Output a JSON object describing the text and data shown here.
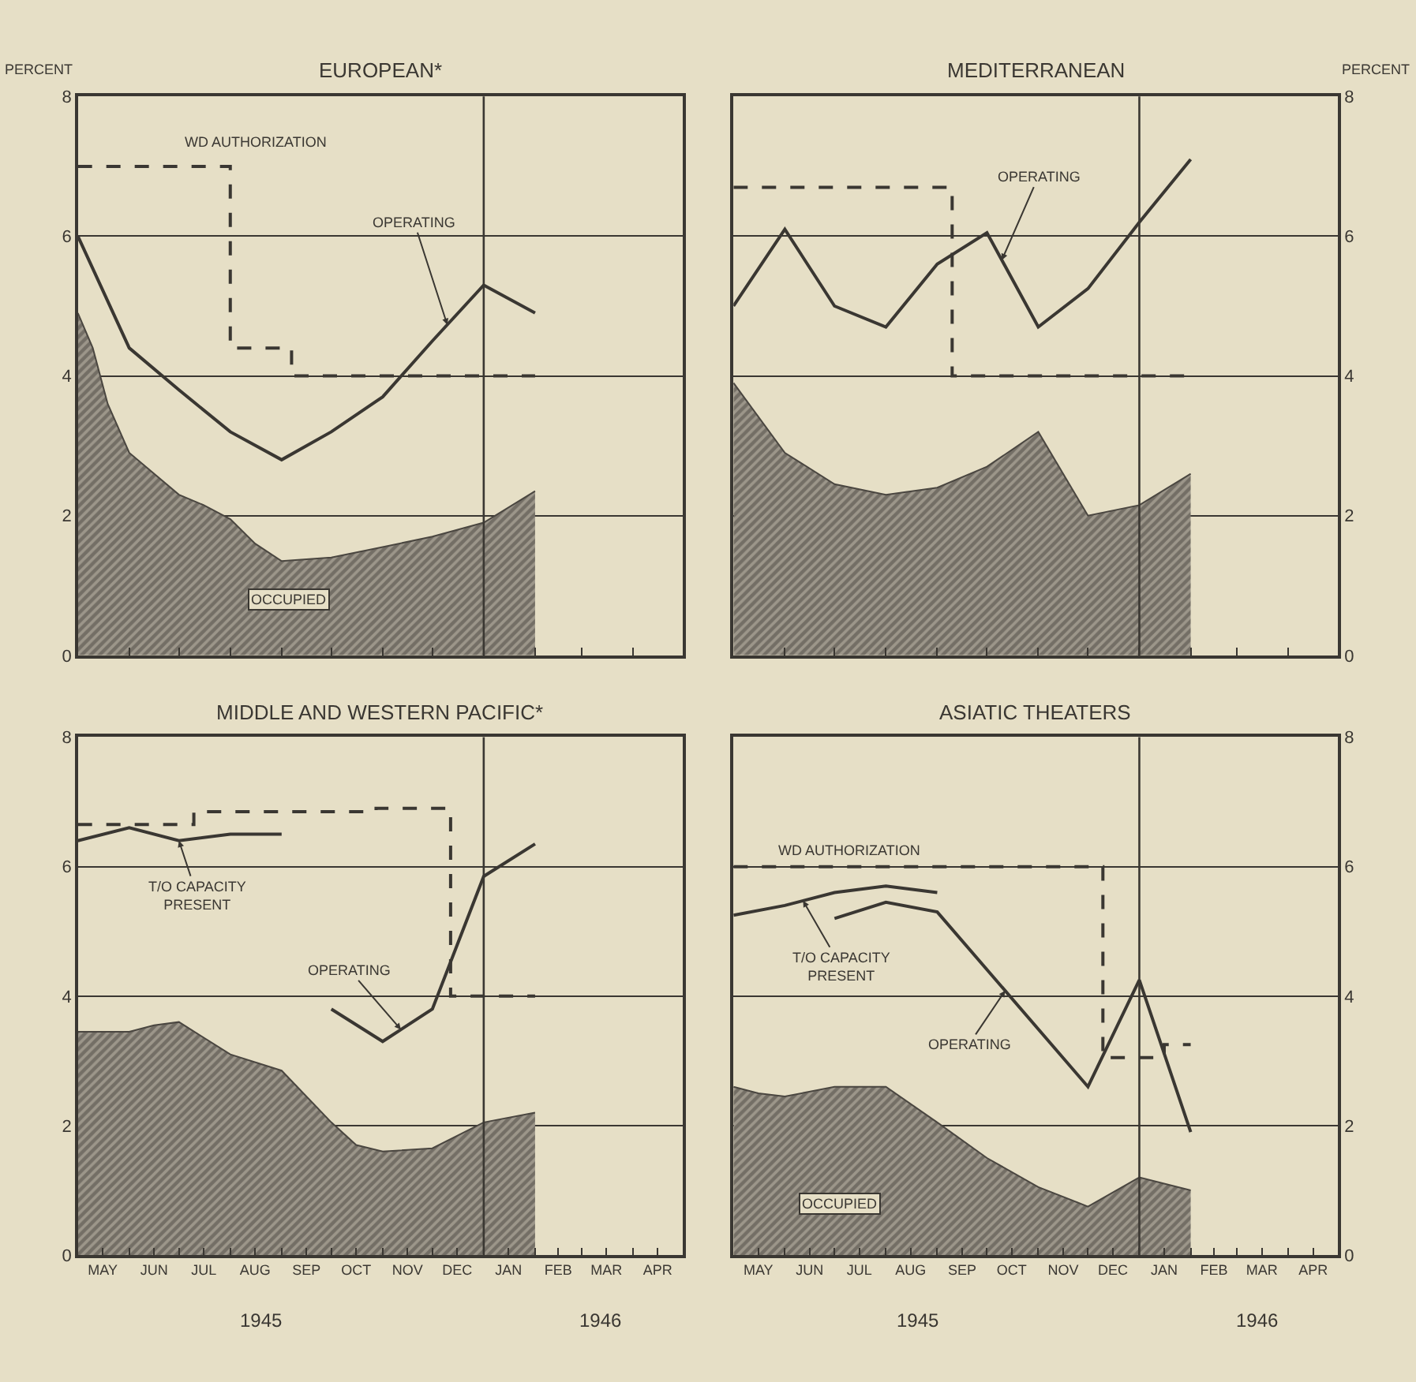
{
  "chart_data": [
    {
      "type": "line",
      "title": "EUROPEAN*",
      "ylabel": "PERCENT",
      "xlim": [
        "1945-05",
        "1946-05"
      ],
      "ylim": [
        0,
        8
      ],
      "yticks": [
        0,
        2,
        4,
        6,
        8
      ],
      "xticks": [
        {
          "value": "1945-06",
          "label": null
        },
        {
          "value": "1945-07",
          "label": null
        },
        {
          "value": "1945-08",
          "label": null
        },
        {
          "value": "1945-09",
          "label": null
        },
        {
          "value": "1945-10",
          "label": null
        },
        {
          "value": "1945-11",
          "label": null
        },
        {
          "value": "1945-12",
          "label": null
        },
        {
          "value": "1946-01",
          "label": null
        },
        {
          "value": "1946-02",
          "label": null
        },
        {
          "value": "1946-03",
          "label": null
        },
        {
          "value": "1946-04",
          "label": null
        }
      ],
      "tick_labels": "y",
      "grid": "y",
      "legend": false,
      "ref_lines": [
        {
          "axis": "x",
          "value": "1946-01"
        }
      ],
      "series": [
        {
          "name": "OCCUPIED",
          "type": "area",
          "color": "#4a4640",
          "x": [
            "1945-05",
            "1945-05-10",
            "1945-05-19",
            "1945-06",
            "1945-06-16",
            "1945-07",
            "1945-07-16",
            "1945-08",
            "1945-08-16",
            "1945-09",
            "1945-10",
            "1945-11",
            "1945-12",
            "1946-01",
            "1946-02"
          ],
          "values": [
            4.9,
            4.4,
            3.6,
            2.9,
            2.6,
            2.3,
            2.15,
            1.95,
            1.6,
            1.35,
            1.4,
            1.55,
            1.7,
            1.9,
            2.35
          ]
        },
        {
          "name": "WD AUTHORIZATION",
          "type": "step",
          "line_style": "dashed",
          "color": "#3a3732",
          "x": [
            "1945-05",
            "1945-08",
            "1945-09-07",
            "1946-02"
          ],
          "values": [
            7,
            4.4,
            4,
            4
          ]
        },
        {
          "name": "OPERATING",
          "type": "line",
          "color": "#3a3732",
          "x": [
            "1945-05",
            "1945-06",
            "1945-07",
            "1945-08",
            "1945-09",
            "1945-10",
            "1945-11",
            "1945-12",
            "1946-01",
            "1946-02"
          ],
          "values": [
            6.0,
            4.4,
            3.8,
            3.2,
            2.8,
            3.2,
            3.7,
            4.5,
            5.3,
            4.9
          ]
        }
      ]
    },
    {
      "type": "line",
      "title": "MEDITERRANEAN",
      "ylabel": "PERCENT",
      "xlim": [
        "1945-05",
        "1946-05"
      ],
      "ylim": [
        0,
        8
      ],
      "yticks": [
        0,
        2,
        4,
        6,
        8
      ],
      "xticks": [
        {
          "value": "1945-06",
          "label": null
        },
        {
          "value": "1945-07",
          "label": null
        },
        {
          "value": "1945-08",
          "label": null
        },
        {
          "value": "1945-09",
          "label": null
        },
        {
          "value": "1945-10",
          "label": null
        },
        {
          "value": "1945-11",
          "label": null
        },
        {
          "value": "1945-12",
          "label": null
        },
        {
          "value": "1946-01",
          "label": null
        },
        {
          "value": "1946-02",
          "label": null
        },
        {
          "value": "1946-03",
          "label": null
        },
        {
          "value": "1946-04",
          "label": null
        }
      ],
      "tick_labels": "y",
      "grid": "y",
      "legend": false,
      "ref_lines": [
        {
          "axis": "x",
          "value": "1946-01"
        }
      ],
      "series": [
        {
          "type": "area",
          "color": "#4a4640",
          "x": [
            "1945-05",
            "1945-06",
            "1945-07",
            "1945-08",
            "1945-09",
            "1945-10",
            "1945-11",
            "1945-12",
            "1946-01",
            "1946-02"
          ],
          "values": [
            3.9,
            2.9,
            2.45,
            2.3,
            2.4,
            2.7,
            3.2,
            2.0,
            2.15,
            2.6
          ]
        },
        {
          "type": "step",
          "line_style": "dashed",
          "color": "#3a3732",
          "x": [
            "1945-05",
            "1945-09-10",
            "1946-02"
          ],
          "values": [
            6.7,
            4,
            4
          ]
        },
        {
          "name": "OPERATING",
          "type": "line",
          "color": "#3a3732",
          "x": [
            "1945-05",
            "1945-06",
            "1945-07",
            "1945-08",
            "1945-09",
            "1945-10",
            "1945-11",
            "1945-12",
            "1946-01",
            "1946-02"
          ],
          "values": [
            5.0,
            6.1,
            5.0,
            4.7,
            5.6,
            6.05,
            4.7,
            5.25,
            6.2,
            7.1
          ]
        }
      ]
    },
    {
      "type": "line",
      "title": "MIDDLE AND WESTERN PACIFIC*",
      "xlim": [
        "1945-05",
        "1946-05"
      ],
      "ylim": [
        0,
        8
      ],
      "yticks": [
        0,
        2,
        4,
        6,
        8
      ],
      "xticks": [
        {
          "value": "1945-05-16",
          "label": "MAY"
        },
        {
          "value": "1945-06-16",
          "label": "JUN"
        },
        {
          "value": "1945-07-16",
          "label": "JUL"
        },
        {
          "value": "1945-08-16",
          "label": "AUG"
        },
        {
          "value": "1945-09-16",
          "label": "SEP"
        },
        {
          "value": "1945-10-16",
          "label": "OCT"
        },
        {
          "value": "1945-11-16",
          "label": "NOV"
        },
        {
          "value": "1945-12-16",
          "label": "DEC"
        },
        {
          "value": "1946-01-16",
          "label": "JAN"
        },
        {
          "value": "1946-02-15",
          "label": "FEB"
        },
        {
          "value": "1946-03-16",
          "label": "MAR"
        },
        {
          "value": "1946-04-16",
          "label": "APR"
        },
        {
          "value": "1945-06",
          "label": null
        },
        {
          "value": "1945-07",
          "label": null
        },
        {
          "value": "1945-08",
          "label": null
        },
        {
          "value": "1945-09",
          "label": null
        },
        {
          "value": "1945-10",
          "label": null
        },
        {
          "value": "1945-11",
          "label": null
        },
        {
          "value": "1945-12",
          "label": null
        },
        {
          "value": "1946-01",
          "label": null
        },
        {
          "value": "1946-02",
          "label": null
        },
        {
          "value": "1946-03",
          "label": null
        },
        {
          "value": "1946-04",
          "label": null
        }
      ],
      "grid": "y",
      "legend": false,
      "ref_lines": [
        {
          "axis": "x",
          "value": "1946-01"
        }
      ],
      "annotations": [
        "1945",
        "1946"
      ],
      "series": [
        {
          "type": "area",
          "color": "#4a4640",
          "x": [
            "1945-05",
            "1945-06",
            "1945-06-16",
            "1945-07",
            "1945-08",
            "1945-09",
            "1945-10",
            "1945-10-16",
            "1945-11",
            "1945-12",
            "1946-01",
            "1946-02"
          ],
          "values": [
            3.45,
            3.45,
            3.55,
            3.6,
            3.1,
            2.85,
            2.05,
            1.7,
            1.6,
            1.65,
            2.05,
            2.2
          ]
        },
        {
          "type": "step",
          "line_style": "dashed",
          "color": "#3a3732",
          "x": [
            "1945-05",
            "1945-07-10",
            "1945-10-28",
            "1945-12-12",
            "1946-02"
          ],
          "values": [
            6.65,
            6.85,
            6.9,
            4,
            4
          ]
        },
        {
          "name": "T/O CAPACITY PRESENT",
          "type": "line",
          "color": "#3a3732",
          "x": [
            "1945-05",
            "1945-06",
            "1945-07",
            "1945-08",
            "1945-09"
          ],
          "values": [
            6.4,
            6.6,
            6.4,
            6.5,
            6.5
          ]
        },
        {
          "name": "OPERATING",
          "type": "line",
          "color": "#3a3732",
          "x": [
            "1945-10",
            "1945-11",
            "1945-12",
            "1946-01",
            "1946-02"
          ],
          "values": [
            3.8,
            3.3,
            3.8,
            5.85,
            6.35
          ]
        }
      ]
    },
    {
      "type": "line",
      "title": "ASIATIC THEATERS",
      "xlim": [
        "1945-05",
        "1946-05"
      ],
      "ylim": [
        0,
        8
      ],
      "yticks": [
        0,
        2,
        4,
        6,
        8
      ],
      "xticks": [
        {
          "value": "1945-05-16",
          "label": "MAY"
        },
        {
          "value": "1945-06-16",
          "label": "JUN"
        },
        {
          "value": "1945-07-16",
          "label": "JUL"
        },
        {
          "value": "1945-08-16",
          "label": "AUG"
        },
        {
          "value": "1945-09-16",
          "label": "SEP"
        },
        {
          "value": "1945-10-16",
          "label": "OCT"
        },
        {
          "value": "1945-11-16",
          "label": "NOV"
        },
        {
          "value": "1945-12-16",
          "label": "DEC"
        },
        {
          "value": "1946-01-16",
          "label": "JAN"
        },
        {
          "value": "1946-02-15",
          "label": "FEB"
        },
        {
          "value": "1946-03-16",
          "label": "MAR"
        },
        {
          "value": "1946-04-16",
          "label": "APR"
        },
        {
          "value": "1945-06",
          "label": null
        },
        {
          "value": "1945-07",
          "label": null
        },
        {
          "value": "1945-08",
          "label": null
        },
        {
          "value": "1945-09",
          "label": null
        },
        {
          "value": "1945-10",
          "label": null
        },
        {
          "value": "1945-11",
          "label": null
        },
        {
          "value": "1945-12",
          "label": null
        },
        {
          "value": "1946-01",
          "label": null
        },
        {
          "value": "1946-02",
          "label": null
        },
        {
          "value": "1946-03",
          "label": null
        },
        {
          "value": "1946-04",
          "label": null
        }
      ],
      "grid": "y",
      "legend": false,
      "ref_lines": [
        {
          "axis": "x",
          "value": "1946-01"
        }
      ],
      "annotations": [
        "1945",
        "1946"
      ],
      "series": [
        {
          "name": "OCCUPIED",
          "type": "area",
          "color": "#4a4640",
          "x": [
            "1945-05",
            "1945-05-16",
            "1945-06",
            "1945-07",
            "1945-08",
            "1945-09",
            "1945-10",
            "1945-11",
            "1945-12",
            "1946-01",
            "1946-02"
          ],
          "values": [
            2.6,
            2.5,
            2.45,
            2.6,
            2.6,
            2.05,
            1.5,
            1.05,
            0.75,
            1.2,
            1.0
          ]
        },
        {
          "name": "WD AUTHORIZATION",
          "type": "step",
          "line_style": "dashed",
          "color": "#3a3732",
          "x": [
            "1945-05",
            "1945-12-10",
            "1946-01-16",
            "1946-02"
          ],
          "values": [
            6,
            3.05,
            3.25,
            3.25
          ]
        },
        {
          "name": "T/O CAPACITY PRESENT",
          "type": "line",
          "color": "#3a3732",
          "x": [
            "1945-05",
            "1945-06",
            "1945-07",
            "1945-08",
            "1945-09"
          ],
          "values": [
            5.25,
            5.4,
            5.6,
            5.7,
            5.6
          ]
        },
        {
          "name": "OPERATING",
          "type": "line",
          "color": "#3a3732",
          "x": [
            "1945-07",
            "1945-08",
            "1945-09",
            "1945-12",
            "1946-01",
            "1946-02"
          ],
          "values": [
            5.2,
            5.45,
            5.3,
            2.6,
            4.25,
            1.9
          ]
        }
      ]
    }
  ]
}
